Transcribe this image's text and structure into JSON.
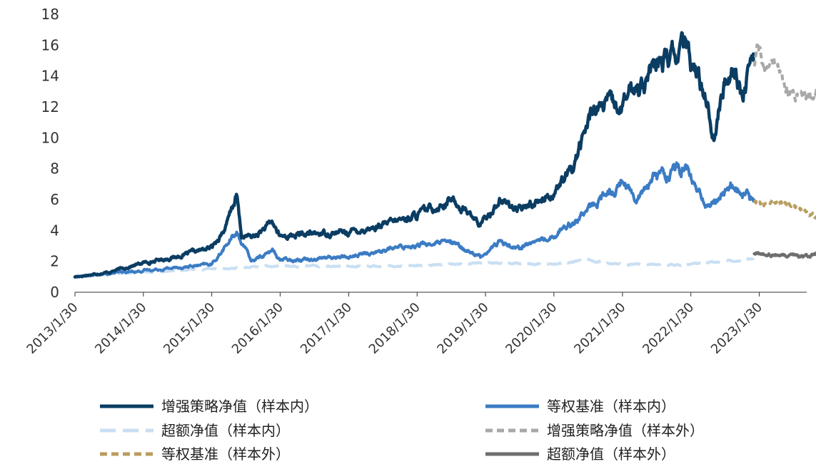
{
  "chart_data": {
    "type": "line",
    "ylim": [
      0,
      18
    ],
    "y_ticks": [
      "0",
      "2",
      "4",
      "6",
      "8",
      "10",
      "12",
      "14",
      "16",
      "18"
    ],
    "x_ticks": [
      "2013/1/30",
      "2014/1/30",
      "2015/1/30",
      "2016/1/30",
      "2017/1/30",
      "2018/1/30",
      "2019/1/30",
      "2020/1/30",
      "2021/1/30",
      "2022/1/30",
      "2023/1/30"
    ],
    "grid": false,
    "legend_position": "bottom",
    "series": [
      {
        "name": "增强策略净值（样本内）",
        "color": "#0b3d63",
        "style": "solid",
        "points": [
          [
            "2013/1/30",
            1.0
          ],
          [
            "2013/7/30",
            1.3
          ],
          [
            "2014/1/30",
            1.9
          ],
          [
            "2014/7/30",
            2.3
          ],
          [
            "2015/1/30",
            2.9
          ],
          [
            "2015/4/15",
            4.2
          ],
          [
            "2015/6/12",
            6.3
          ],
          [
            "2015/7/8",
            3.6
          ],
          [
            "2015/9/15",
            3.6
          ],
          [
            "2015/12/20",
            4.5
          ],
          [
            "2016/1/30",
            3.6
          ],
          [
            "2016/7/30",
            3.8
          ],
          [
            "2017/1/30",
            3.9
          ],
          [
            "2017/7/30",
            4.3
          ],
          [
            "2018/1/30",
            5.0
          ],
          [
            "2018/7/30",
            6.0
          ],
          [
            "2018/10/30",
            5.2
          ],
          [
            "2019/1/3",
            4.3
          ],
          [
            "2019/4/15",
            6.0
          ],
          [
            "2019/7/30",
            5.3
          ],
          [
            "2020/1/30",
            6.5
          ],
          [
            "2020/4/30",
            7.8
          ],
          [
            "2020/8/30",
            12.0
          ],
          [
            "2021/1/30",
            12.0
          ],
          [
            "2021/3/30",
            13.2
          ],
          [
            "2021/7/30",
            14.5
          ],
          [
            "2021/12/30",
            15.8
          ],
          [
            "2022/4/30",
            12.5
          ],
          [
            "2022/5/30",
            10.0
          ],
          [
            "2022/7/30",
            13.5
          ],
          [
            "2022/9/15",
            15.0
          ],
          [
            "2022/10/30",
            12.8
          ],
          [
            "2022/12/30",
            15.0
          ]
        ]
      },
      {
        "name": "等权基准（样本内）",
        "color": "#3b7cc4",
        "style": "solid",
        "points": [
          [
            "2013/1/30",
            1.0
          ],
          [
            "2014/1/30",
            1.4
          ],
          [
            "2015/1/30",
            1.8
          ],
          [
            "2015/6/12",
            3.9
          ],
          [
            "2015/8/30",
            2.0
          ],
          [
            "2015/12/20",
            2.7
          ],
          [
            "2016/1/30",
            2.1
          ],
          [
            "2017/1/30",
            2.3
          ],
          [
            "2018/1/30",
            3.1
          ],
          [
            "2018/7/30",
            3.2
          ],
          [
            "2019/1/3",
            2.3
          ],
          [
            "2019/4/15",
            3.3
          ],
          [
            "2019/7/30",
            2.9
          ],
          [
            "2020/1/30",
            3.7
          ],
          [
            "2020/8/30",
            5.6
          ],
          [
            "2021/2/15",
            7.4
          ],
          [
            "2021/3/30",
            6.1
          ],
          [
            "2021/7/30",
            7.6
          ],
          [
            "2021/12/30",
            8.0
          ],
          [
            "2022/4/30",
            5.4
          ],
          [
            "2022/8/30",
            6.9
          ],
          [
            "2022/12/30",
            5.9
          ]
        ]
      },
      {
        "name": "超额净值（样本内）",
        "color": "#c9dff2",
        "style": "dashed",
        "points": [
          [
            "2013/1/30",
            1.0
          ],
          [
            "2014/1/30",
            1.3
          ],
          [
            "2015/1/30",
            1.5
          ],
          [
            "2015/6/12",
            1.6
          ],
          [
            "2016/1/30",
            1.7
          ],
          [
            "2017/1/30",
            1.7
          ],
          [
            "2018/1/30",
            1.7
          ],
          [
            "2019/1/30",
            1.9
          ],
          [
            "2020/1/30",
            1.8
          ],
          [
            "2020/7/30",
            2.1
          ],
          [
            "2021/1/30",
            1.8
          ],
          [
            "2022/1/30",
            1.8
          ],
          [
            "2022/12/30",
            2.2
          ]
        ]
      },
      {
        "name": "增强策略净值（样本外）",
        "color": "#a8a8a8",
        "style": "dashed",
        "points": [
          [
            "2023/1/3",
            14.7
          ],
          [
            "2023/1/20",
            15.8
          ],
          [
            "2023/3/1",
            14.2
          ],
          [
            "2023/4/15",
            15.0
          ],
          [
            "2023/6/30",
            13.0
          ],
          [
            "2023/9/30",
            12.4
          ],
          [
            "2023/11/30",
            12.8
          ],
          [
            "2024/1/20",
            11.6
          ]
        ]
      },
      {
        "name": "等权基准（样本外）",
        "color": "#b99d5e",
        "style": "dashed",
        "points": [
          [
            "2023/1/3",
            6.0
          ],
          [
            "2023/2/15",
            5.6
          ],
          [
            "2023/4/15",
            6.0
          ],
          [
            "2023/7/30",
            5.6
          ],
          [
            "2023/10/30",
            5.2
          ],
          [
            "2024/1/20",
            4.6
          ]
        ]
      },
      {
        "name": "超额净值（样本外）",
        "color": "#6e6e6e",
        "style": "solid",
        "points": [
          [
            "2023/1/3",
            2.5
          ],
          [
            "2023/4/30",
            2.4
          ],
          [
            "2023/8/30",
            2.3
          ],
          [
            "2023/11/30",
            2.4
          ],
          [
            "2024/1/20",
            2.4
          ]
        ]
      }
    ]
  }
}
